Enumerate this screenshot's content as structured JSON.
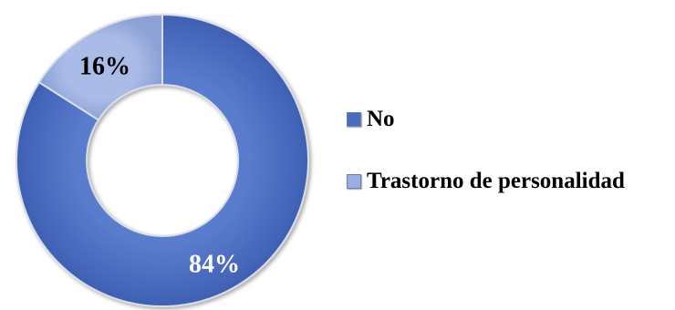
{
  "chart_data": {
    "type": "pie",
    "title": "",
    "donut": true,
    "categories": [
      "No",
      "Trastorno de personalidad"
    ],
    "values": [
      84,
      16
    ],
    "data_labels": [
      "84%",
      "16%"
    ],
    "colors": [
      "#4a6cbf",
      "#9aaee0"
    ],
    "label_colors": [
      "#ffffff",
      "#000000"
    ],
    "legend": {
      "position": "right",
      "entries": [
        "No",
        "Trastorno de personalidad"
      ]
    }
  }
}
